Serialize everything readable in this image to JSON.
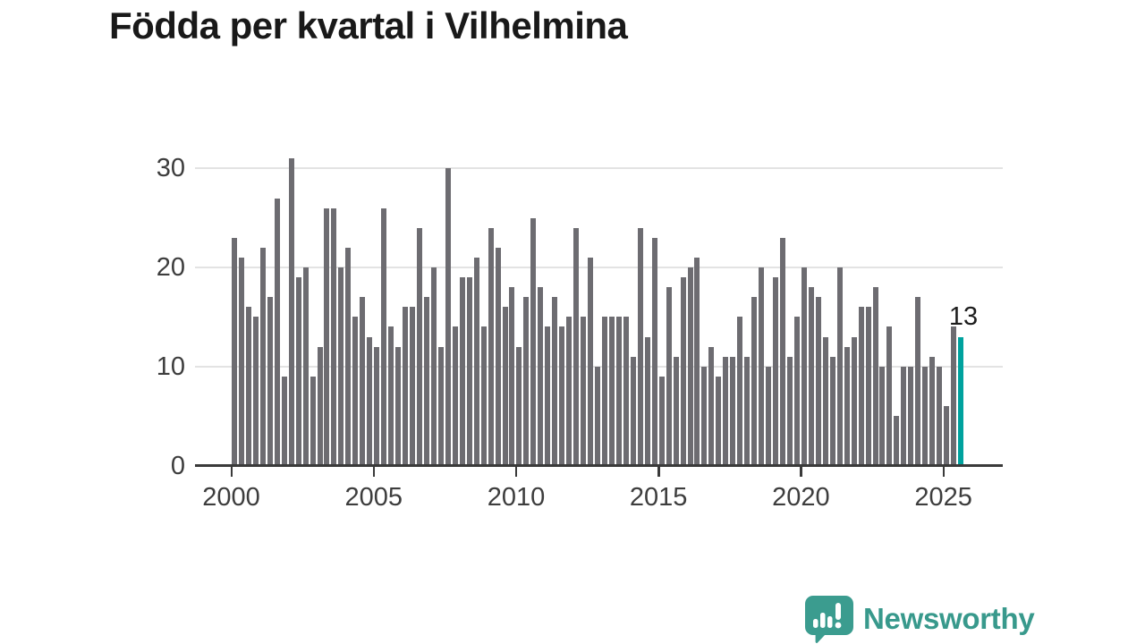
{
  "title": "Födda per kvartal i Vilhelmina",
  "chart_data": {
    "type": "bar",
    "title": "Födda per kvartal i Vilhelmina",
    "x_start": "2000-Q1",
    "x_end": "2025-Q3",
    "x_tick_labels": [
      "2000",
      "2005",
      "2010",
      "2015",
      "2020",
      "2025"
    ],
    "y_tick_labels": [
      "0",
      "10",
      "20",
      "30"
    ],
    "ylim": [
      0,
      33
    ],
    "grid": "horizontal",
    "legend": "none",
    "values": [
      23,
      21,
      16,
      15,
      22,
      17,
      27,
      9,
      31,
      19,
      20,
      9,
      12,
      26,
      26,
      20,
      22,
      15,
      17,
      13,
      12,
      26,
      14,
      12,
      16,
      16,
      24,
      17,
      20,
      12,
      30,
      14,
      19,
      19,
      21,
      14,
      24,
      22,
      16,
      18,
      12,
      17,
      25,
      18,
      14,
      17,
      14,
      15,
      24,
      15,
      21,
      10,
      15,
      15,
      15,
      15,
      11,
      24,
      13,
      23,
      9,
      18,
      11,
      19,
      20,
      21,
      10,
      12,
      9,
      11,
      11,
      15,
      11,
      17,
      20,
      10,
      19,
      23,
      11,
      15,
      20,
      18,
      17,
      13,
      11,
      20,
      12,
      13,
      16,
      16,
      18,
      10,
      14,
      5,
      10,
      10,
      17,
      10,
      11,
      10,
      6,
      14,
      13
    ],
    "bar_color": "#6d6c71",
    "highlight_last_bar": true,
    "highlight_color": "#00a29e",
    "last_bar_annotation": "13"
  },
  "footer": {
    "brand": "Newsworthy",
    "brand_color": "#38998c",
    "icon": "newsworthy-speech-bubble-chart-icon"
  }
}
